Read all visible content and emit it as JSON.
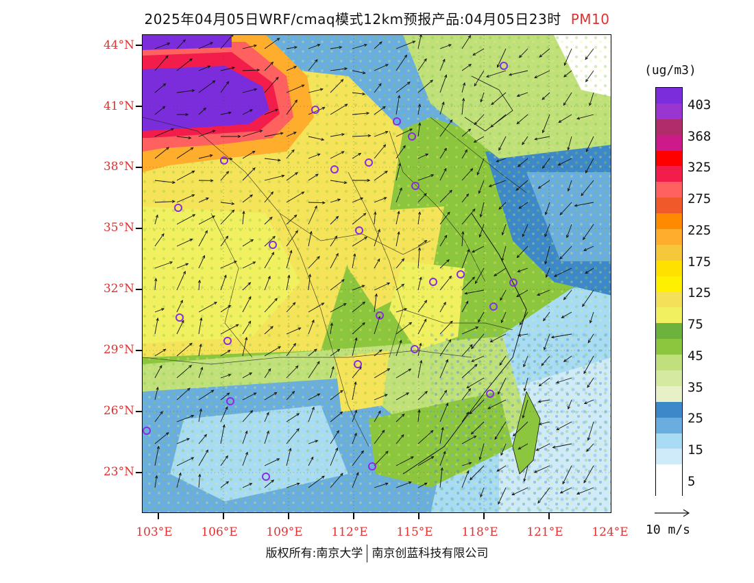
{
  "title": {
    "main": "2025年04月05日WRF/cmaq模式12km预报产品:04月05日23时",
    "pollutant": "PM10"
  },
  "axes": {
    "lat_labels": [
      "44°N",
      "41°N",
      "38°N",
      "35°N",
      "32°N",
      "29°N",
      "26°N",
      "23°N"
    ],
    "lon_labels": [
      "103°E",
      "106°E",
      "109°E",
      "112°E",
      "115°E",
      "118°E",
      "121°E",
      "124°E"
    ]
  },
  "colorbar": {
    "unit": "(ug/m3)",
    "labels": [
      "403",
      "368",
      "325",
      "275",
      "225",
      "175",
      "125",
      "75",
      "45",
      "35",
      "25",
      "15",
      "5"
    ],
    "colors": [
      "#7b2ddb",
      "#9b35d0",
      "#b02c6a",
      "#cc1a8a",
      "#ff0000",
      "#f21d4a",
      "#ff6060",
      "#f05a2a",
      "#ff8a00",
      "#ffad2d",
      "#f5c83c",
      "#ffe100",
      "#fff000",
      "#f5e05a",
      "#f0f060",
      "#6cb33e",
      "#8cc63f",
      "#bfe07a",
      "#d4eaa0",
      "#e8f0c8",
      "#3d88c8",
      "#6aaee0",
      "#a8dcf5",
      "#cfeaf8",
      "#ffffff",
      "#ffffff"
    ]
  },
  "wind_ref": "10 m/s",
  "copyright": {
    "left": "版权所有:南京大学",
    "right": "南京创蓝科技有限公司"
  },
  "map": {
    "colors": {
      "purple": "#7b2ddb",
      "red": "#f21d4a",
      "orange": "#ff8a00",
      "yellow": "#ffe100",
      "light_yellow": "#f5e35a",
      "green": "#8cc63f",
      "light_green": "#bfe07a",
      "blue": "#3d88c8",
      "light_blue": "#a8dcf5",
      "white": "#ffffff"
    }
  }
}
